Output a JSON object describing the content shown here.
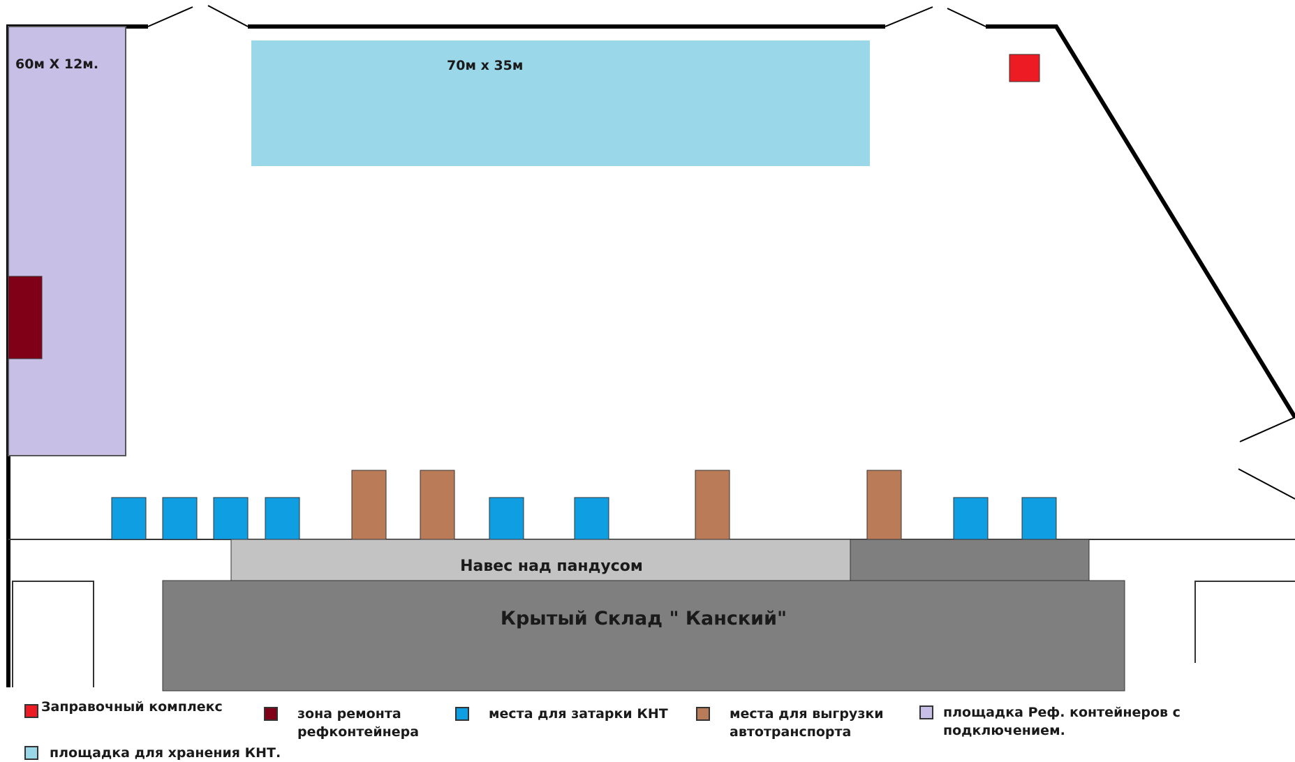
{
  "zones": {
    "reefer_area_label": "60м X 12м.",
    "knt_storage_label": "70м x 35м",
    "canopy_label": "Навес над пандусом",
    "warehouse_label": "Крытый Склад \" Канский\""
  },
  "legend": [
    {
      "key": "fuel",
      "label": "Заправочный комплекс",
      "color": "#ed1c24"
    },
    {
      "key": "repair",
      "label": "зона ремонта\nрефконтейнера",
      "color": "#7f0017"
    },
    {
      "key": "loading",
      "label": "места для затарки КНТ",
      "color": "#0f9ee2"
    },
    {
      "key": "unloading",
      "label": "места для выгрузки\nавтотранспорта",
      "color": "#b97b58"
    },
    {
      "key": "reefer",
      "label": "площадка Реф. контейнеров с\nподключением.",
      "color": "#c8bfe6"
    },
    {
      "key": "storage",
      "label": "площадка для хранения КНТ.",
      "color": "#9ad8e9"
    }
  ],
  "colors": {
    "fuel": "#ed1c24",
    "repair": "#7f0017",
    "loading": "#0f9ee2",
    "unloading": "#b97b58",
    "reefer": "#c8bfe6",
    "storage": "#9ad8e9",
    "canopy_light": "#c3c3c3",
    "canopy_dark": "#7f7f7f",
    "warehouse": "#7f7f7f"
  }
}
